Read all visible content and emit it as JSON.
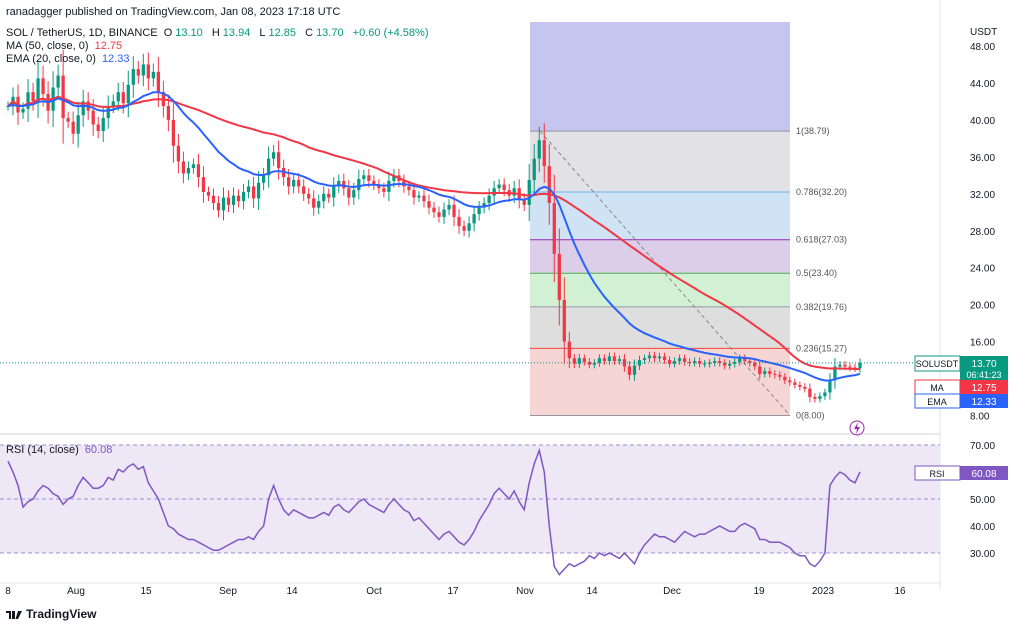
{
  "header": {
    "published": "ranadagger published on TradingView.com, Jan 08, 2023 17:18 UTC",
    "symbol": "SOL / TetherUS, 1D, BINANCE",
    "o_label": "O",
    "o": "13.10",
    "h_label": "H",
    "h": "13.94",
    "l_label": "L",
    "l": "12.85",
    "c_label": "C",
    "c": "13.70",
    "change": "+0.60 (+4.58%)",
    "ma_label": "MA (50, close, 0)",
    "ma_value": "12.75",
    "ema_label": "EMA (20, close, 0)",
    "ema_value": "12.33",
    "rsi_label": "RSI (14, close)",
    "rsi_value": "60.08"
  },
  "footer": {
    "brand": "TradingView"
  },
  "chart_data": {
    "type": "candlestick",
    "currency": "USDT",
    "price_axis_ticks": [
      "48.00",
      "44.00",
      "40.00",
      "36.00",
      "32.00",
      "28.00",
      "24.00",
      "20.00",
      "16.00",
      "8.00"
    ],
    "rsi_axis_ticks": [
      "70.00",
      "60.00",
      "50.00",
      "40.00",
      "30.00"
    ],
    "x_ticks": [
      "8",
      "Aug",
      "15",
      "Sep",
      "14",
      "Oct",
      "17",
      "Nov",
      "14",
      "Dec",
      "19",
      "2023",
      "16"
    ],
    "ylim": [
      8,
      50
    ],
    "rsi_ylim": [
      20,
      72
    ],
    "fib_levels": [
      {
        "label": "1(38.79)",
        "value": 38.79,
        "color": "#9598a1"
      },
      {
        "label": "0.786(32.20)",
        "value": 32.2,
        "color": "#64b5f6"
      },
      {
        "label": "0.618(27.03)",
        "value": 27.03,
        "color": "#9c27b0"
      },
      {
        "label": "0.5(23.40)",
        "value": 23.4,
        "color": "#4caf50"
      },
      {
        "label": "0.382(19.76)",
        "value": 19.76,
        "color": "#9598a1"
      },
      {
        "label": "0.236(15.27)",
        "value": 15.27,
        "color": "#f44336"
      },
      {
        "label": "0(8.00)",
        "value": 8.0,
        "color": "#9598a1"
      }
    ],
    "price_tag": {
      "label": "SOLUSDT",
      "value": "13.70",
      "countdown": "06:41:23",
      "color": "#089981"
    },
    "ma_tag": {
      "label": "MA",
      "value": "12.75",
      "color": "#f23645"
    },
    "ema_tag": {
      "label": "EMA",
      "value": "12.33",
      "color": "#2962ff"
    },
    "rsi_tag": {
      "label": "RSI",
      "value": "60.08",
      "color": "#7e57c2"
    },
    "colors": {
      "up": "#089981",
      "down": "#f23645",
      "ma": "#f23645",
      "ema": "#2962ff",
      "rsi": "#7e57c2"
    },
    "close": [
      41.5,
      42.5,
      40.8,
      41.2,
      43.0,
      42.0,
      44.5,
      42.8,
      41.0,
      43.5,
      44.8,
      40.2,
      39.8,
      38.5,
      40.5,
      42.0,
      41.0,
      39.5,
      38.8,
      40.2,
      41.5,
      42.0,
      43.0,
      41.8,
      43.8,
      45.5,
      44.8,
      46.0,
      44.5,
      45.2,
      43.0,
      41.5,
      40.0,
      37.2,
      35.5,
      34.2,
      34.8,
      35.2,
      33.8,
      32.2,
      31.8,
      31.0,
      30.2,
      31.6,
      30.8,
      31.8,
      31.2,
      32.2,
      32.8,
      31.5,
      33.2,
      34.0,
      35.8,
      36.5,
      34.8,
      33.8,
      32.8,
      33.5,
      32.8,
      32.0,
      31.5,
      30.5,
      31.2,
      32.0,
      31.6,
      32.8,
      33.4,
      32.6,
      31.6,
      32.4,
      33.6,
      34.0,
      33.4,
      33.0,
      32.6,
      32.2,
      33.4,
      34.0,
      33.4,
      32.8,
      32.4,
      31.6,
      31.8,
      31.2,
      30.5,
      30.0,
      29.5,
      30.3,
      30.8,
      29.5,
      28.5,
      28.0,
      28.8,
      29.8,
      30.5,
      31.0,
      31.8,
      32.6,
      33.0,
      32.4,
      31.8,
      32.6,
      31.4,
      30.8,
      33.5,
      35.8,
      37.8,
      35.0,
      31.0,
      25.5,
      20.5,
      16.0,
      14.2,
      13.6,
      14.2,
      13.8,
      13.5,
      13.7,
      14.2,
      13.9,
      14.4,
      13.9,
      14.1,
      13.3,
      12.4,
      13.4,
      14.0,
      14.2,
      14.5,
      14.2,
      14.4,
      14.0,
      13.6,
      13.9,
      14.2,
      13.8,
      13.7,
      13.9,
      13.6,
      13.6,
      13.7,
      13.9,
      13.7,
      13.4,
      13.6,
      13.8,
      14.2,
      13.9,
      13.7,
      13.3,
      12.5,
      12.8,
      12.5,
      12.4,
      12.2,
      11.8,
      11.6,
      11.3,
      11.1,
      10.9,
      10.0,
      9.8,
      10.1,
      10.5,
      11.8,
      13.3,
      13.5,
      13.3,
      13.2,
      13.1,
      13.7
    ],
    "rsi": [
      64,
      60,
      55,
      47,
      49,
      50,
      53,
      55,
      54,
      52,
      51,
      48,
      50,
      51,
      55,
      58,
      56,
      54,
      54,
      55,
      58,
      57,
      61,
      60,
      62,
      63,
      61,
      62,
      56,
      53,
      50,
      45,
      40,
      39,
      37,
      36,
      35,
      35,
      34,
      33,
      32,
      31,
      31,
      32,
      33,
      34,
      35,
      35,
      36,
      35,
      38,
      40,
      50,
      55,
      50,
      46,
      44,
      46,
      45,
      44,
      43,
      43,
      44,
      45,
      44,
      47,
      48,
      46,
      45,
      47,
      49,
      50,
      48,
      47,
      46,
      45,
      48,
      50,
      48,
      46,
      45,
      42,
      43,
      41,
      39,
      37,
      35,
      37,
      38,
      36,
      34,
      33,
      35,
      38,
      42,
      45,
      48,
      52,
      54,
      52,
      50,
      53,
      49,
      46,
      56,
      63,
      68,
      60,
      40,
      25,
      22,
      24,
      26,
      25,
      26,
      27,
      29,
      28,
      30,
      29,
      30,
      29,
      28,
      30,
      28,
      26,
      30,
      33,
      35,
      37,
      36,
      36,
      35,
      34,
      36,
      38,
      37,
      36,
      37,
      37,
      38,
      39,
      40,
      39,
      38,
      38,
      40,
      41,
      40,
      39,
      35,
      35,
      34,
      34,
      34,
      33,
      32,
      30,
      29,
      29,
      26,
      25,
      27,
      30,
      55,
      58,
      60,
      59,
      57,
      56,
      60
    ]
  }
}
